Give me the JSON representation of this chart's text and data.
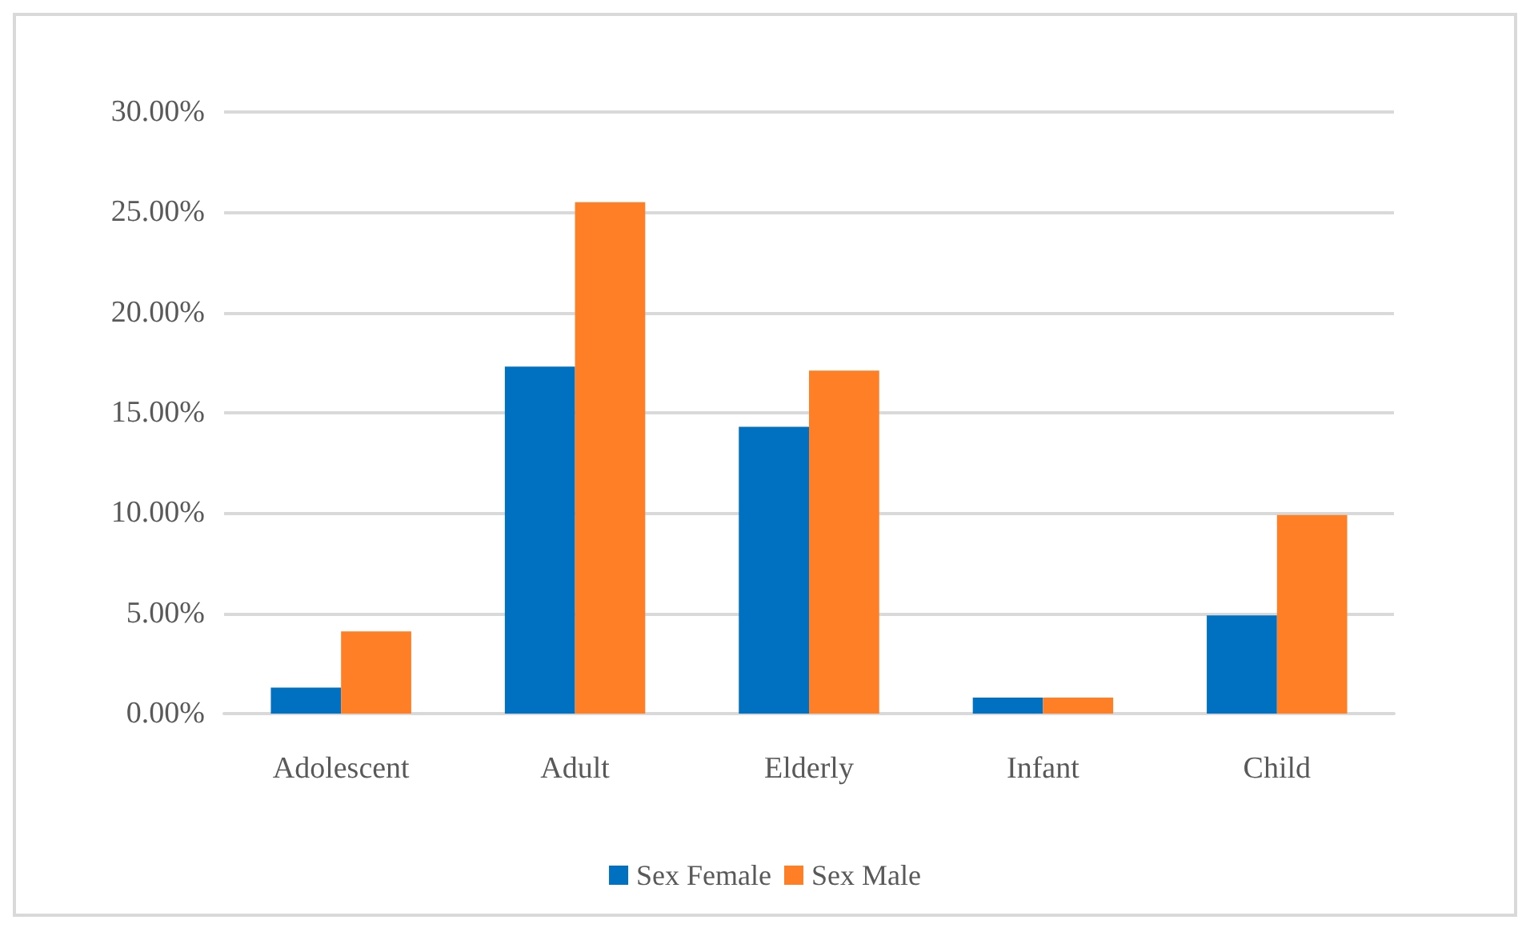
{
  "chart_data": {
    "type": "bar",
    "categories": [
      "Adolescent",
      "Adult",
      "Elderly",
      "Infant",
      "Child"
    ],
    "series": [
      {
        "name": "Sex Female",
        "color": "#0070c0",
        "values": [
          1.3,
          17.3,
          14.3,
          0.8,
          4.9
        ]
      },
      {
        "name": "Sex Male",
        "color": "#ff7f27",
        "values": [
          4.1,
          25.5,
          17.1,
          0.8,
          9.9
        ]
      }
    ],
    "ylim": [
      0,
      30
    ],
    "yticks": [
      {
        "value": 0,
        "label": "0.00%"
      },
      {
        "value": 5,
        "label": "5.00%"
      },
      {
        "value": 10,
        "label": "10.00%"
      },
      {
        "value": 15,
        "label": "15.00%"
      },
      {
        "value": 20,
        "label": "20.00%"
      },
      {
        "value": 25,
        "label": "25.00%"
      },
      {
        "value": 30,
        "label": "30.00%"
      }
    ],
    "grid": "y",
    "legend": "bottom"
  }
}
